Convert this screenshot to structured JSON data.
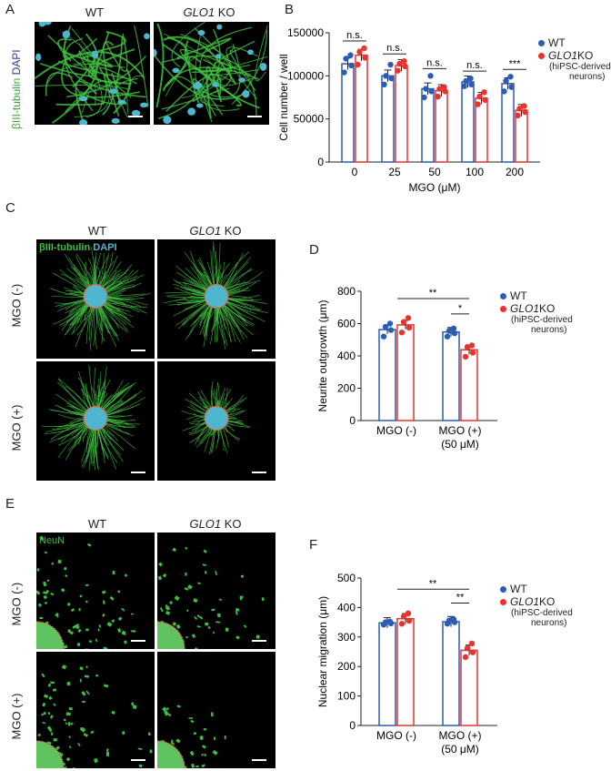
{
  "panelA": {
    "label": "A",
    "col1": "WT",
    "col2_italic": "GLO1",
    "col2_rest": " KO",
    "ylabel_green": "βIII-tubulin",
    "ylabel_blue": " DAPI"
  },
  "panelB": {
    "label": "B",
    "chart_data": {
      "type": "bar",
      "categories": [
        "0",
        "25",
        "50",
        "100",
        "200"
      ],
      "series": [
        {
          "name": "WT",
          "values": [
            114000,
            100000,
            85000,
            93000,
            91000
          ],
          "points": [
            [
              104000,
              112000,
              120000,
              124000
            ],
            [
              90000,
              97000,
              100000,
              113000
            ],
            [
              75000,
              82000,
              85000,
              100000
            ],
            [
              88000,
              90000,
              94000,
              97000
            ],
            [
              82000,
              87000,
              94000,
              99000
            ]
          ]
        },
        {
          "name": "GLO1 KO",
          "values": [
            124000,
            112000,
            83000,
            74000,
            60000
          ],
          "points": [
            [
              113000,
              121000,
              128000,
              132000
            ],
            [
              106000,
              111000,
              114000,
              117000
            ],
            [
              76000,
              82000,
              85000,
              87000
            ],
            [
              67000,
              72000,
              76000,
              81000
            ],
            [
              54000,
              58000,
              62000,
              65000
            ]
          ]
        }
      ],
      "ylim": [
        0,
        150000
      ],
      "yticks": [
        "0",
        "50000",
        "100000",
        "150000"
      ],
      "ylabel": "Cell number / well",
      "xlabel": "MGO (μM)",
      "sig": [
        "n.s.",
        "n.s.",
        "n.s.",
        "n.s.",
        "***"
      ]
    },
    "legend": {
      "wt": "WT",
      "ko_italic": "GLO1",
      "ko_rest": " KO",
      "note1": "(hiPSC-derived",
      "note2": "neurons)"
    }
  },
  "panelC": {
    "label": "C",
    "col1": "WT",
    "col2_italic": "GLO1",
    "col2_rest": " KO",
    "inset_green": "βIII-tubulin",
    "inset_blue": " DAPI",
    "row1": "MGO (-)",
    "row2": "MGO (+)"
  },
  "panelD": {
    "label": "D",
    "chart_data": {
      "type": "bar",
      "categories": [
        "MGO (-)",
        "MGO (+)"
      ],
      "category_sub": [
        "",
        "(50 μM)"
      ],
      "series": [
        {
          "name": "WT",
          "values": [
            563,
            548
          ],
          "points": [
            [
              520,
              560,
              580,
              600
            ],
            [
              520,
              540,
              555,
              570
            ]
          ]
        },
        {
          "name": "GLO1 KO",
          "values": [
            592,
            438
          ],
          "points": [
            [
              545,
              575,
              610,
              635
            ],
            [
              395,
              420,
              455,
              465
            ]
          ]
        }
      ],
      "ylim": [
        0,
        800
      ],
      "yticks": [
        "0",
        "200",
        "400",
        "600",
        "800"
      ],
      "ylabel": "Neurite outgrowth (μm)",
      "sig_top": "**",
      "sig_inner": "*"
    }
  },
  "panelE": {
    "label": "E",
    "col1": "WT",
    "col2_italic": "GLO1",
    "col2_rest": " KO",
    "inset": "NeuN",
    "row1": "MGO (-)",
    "row2": "MGO (+)"
  },
  "panelF": {
    "label": "F",
    "chart_data": {
      "type": "bar",
      "categories": [
        "MGO (-)",
        "MGO (+)"
      ],
      "category_sub": [
        "",
        "(50 μM)"
      ],
      "series": [
        {
          "name": "WT",
          "values": [
            348,
            352
          ],
          "points": [
            [
              342,
              346,
              350,
              352
            ],
            [
              345,
              350,
              356,
              360
            ]
          ]
        },
        {
          "name": "GLO1 KO",
          "values": [
            362,
            255
          ],
          "points": [
            [
              345,
              355,
              370,
              380
            ],
            [
              232,
              248,
              262,
              278
            ]
          ]
        }
      ],
      "ylim": [
        0,
        500
      ],
      "yticks": [
        "0",
        "100",
        "200",
        "300",
        "400",
        "500"
      ],
      "ylabel": "Nuclear migration (μm)",
      "sig_top": "**",
      "sig_inner": "**"
    }
  },
  "colors": {
    "wt": "#2a5bb5",
    "ko": "#e8342f",
    "neurite": "#3fbf3f",
    "dapi": "#4fb6cf"
  }
}
